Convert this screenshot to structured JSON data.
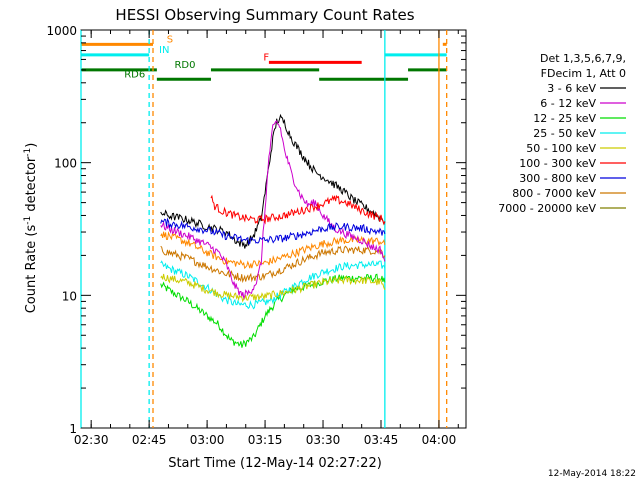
{
  "chart_data": {
    "type": "line",
    "title": "HESSI Observing Summary Count Rates",
    "xlabel": "Start Time (12-May-14 02:27:22)",
    "ylabel": "Count Rate (s",
    "ylabel_sup1": "-1",
    "ylabel_mid": " detector",
    "ylabel_sup2": "-1",
    "ylabel_end": ")",
    "y_scale": "log",
    "ylim": [
      1,
      1000
    ],
    "xlim": [
      "02:27:22",
      "04:07:00"
    ],
    "x_ticks": [
      "02:30",
      "02:45",
      "03:00",
      "03:15",
      "03:30",
      "03:45",
      "04:00"
    ],
    "y_ticks": [
      "1",
      "10",
      "100",
      "1000"
    ],
    "legend": {
      "header1": "Det 1,3,5,6,7,9,",
      "header2": "FDecim 1, Att 0",
      "placement": "right"
    },
    "series": [
      {
        "name": "3 - 6 keV",
        "color": "#000000",
        "points": [
          [
            "02:48",
            42
          ],
          [
            "02:50",
            40
          ],
          [
            "02:55",
            37
          ],
          [
            "03:00",
            33
          ],
          [
            "03:05",
            30
          ],
          [
            "03:08",
            25
          ],
          [
            "03:10",
            24
          ],
          [
            "03:12",
            28
          ],
          [
            "03:14",
            38
          ],
          [
            "03:15",
            60
          ],
          [
            "03:17",
            150
          ],
          [
            "03:18",
            205
          ],
          [
            "03:19",
            215
          ],
          [
            "03:20",
            200
          ],
          [
            "03:22",
            150
          ],
          [
            "03:25",
            110
          ],
          [
            "03:28",
            85
          ],
          [
            "03:31",
            75
          ],
          [
            "03:35",
            62
          ],
          [
            "03:38",
            52
          ],
          [
            "03:42",
            44
          ],
          [
            "03:45",
            38
          ],
          [
            "03:46",
            36
          ]
        ]
      },
      {
        "name": "6 - 12 keV",
        "color": "#cc00cc",
        "points": [
          [
            "02:48",
            34
          ],
          [
            "02:50",
            32
          ],
          [
            "02:55",
            28
          ],
          [
            "03:00",
            24
          ],
          [
            "03:03",
            21
          ],
          [
            "03:05",
            17
          ],
          [
            "03:07",
            12
          ],
          [
            "03:09",
            10
          ],
          [
            "03:11",
            10.5
          ],
          [
            "03:13",
            13
          ],
          [
            "03:14",
            18
          ],
          [
            "03:15",
            45
          ],
          [
            "03:16",
            110
          ],
          [
            "03:17",
            180
          ],
          [
            "03:18",
            205
          ],
          [
            "03:19",
            180
          ],
          [
            "03:20",
            125
          ],
          [
            "03:22",
            80
          ],
          [
            "03:24",
            58
          ],
          [
            "03:26",
            48
          ],
          [
            "03:28",
            50
          ],
          [
            "03:30",
            40
          ],
          [
            "03:33",
            32
          ],
          [
            "03:37",
            28
          ],
          [
            "03:40",
            26
          ],
          [
            "03:43",
            23
          ],
          [
            "03:45",
            22
          ],
          [
            "03:46",
            18
          ]
        ]
      },
      {
        "name": "12 - 25 keV",
        "color": "#00dd00",
        "points": [
          [
            "02:48",
            12
          ],
          [
            "02:50",
            11
          ],
          [
            "02:55",
            9
          ],
          [
            "03:00",
            7
          ],
          [
            "03:03",
            6
          ],
          [
            "03:06",
            4.6
          ],
          [
            "03:09",
            4.2
          ],
          [
            "03:12",
            4.8
          ],
          [
            "03:15",
            7
          ],
          [
            "03:18",
            9
          ],
          [
            "03:22",
            11
          ],
          [
            "03:27",
            12
          ],
          [
            "03:31",
            13
          ],
          [
            "03:35",
            13.5
          ],
          [
            "03:40",
            13.5
          ],
          [
            "03:45",
            13.5
          ],
          [
            "03:46",
            12.5
          ]
        ]
      },
      {
        "name": "25 - 50 keV",
        "color": "#00eeee",
        "points": [
          [
            "02:48",
            17
          ],
          [
            "02:50",
            16
          ],
          [
            "02:55",
            14
          ],
          [
            "03:00",
            11.5
          ],
          [
            "03:04",
            9.5
          ],
          [
            "03:08",
            8.5
          ],
          [
            "03:12",
            8.5
          ],
          [
            "03:16",
            9
          ],
          [
            "03:20",
            10.5
          ],
          [
            "03:25",
            13
          ],
          [
            "03:30",
            15
          ],
          [
            "03:35",
            16.5
          ],
          [
            "03:40",
            17
          ],
          [
            "03:45",
            17
          ],
          [
            "03:46",
            16
          ]
        ]
      },
      {
        "name": "50 - 100 keV",
        "color": "#cccc00",
        "points": [
          [
            "02:48",
            14
          ],
          [
            "02:50",
            13.5
          ],
          [
            "02:55",
            12.5
          ],
          [
            "03:00",
            11
          ],
          [
            "03:05",
            10
          ],
          [
            "03:10",
            9.6
          ],
          [
            "03:15",
            9.8
          ],
          [
            "03:20",
            10.5
          ],
          [
            "03:25",
            11.5
          ],
          [
            "03:30",
            12.5
          ],
          [
            "03:35",
            13
          ],
          [
            "03:40",
            13
          ],
          [
            "03:45",
            12.5
          ],
          [
            "03:46",
            11
          ]
        ]
      },
      {
        "name": "100 - 300 keV",
        "color": "#ff0000",
        "points": [
          [
            "03:01",
            55
          ],
          [
            "03:02",
            47
          ],
          [
            "03:04",
            43
          ],
          [
            "03:07",
            40
          ],
          [
            "03:10",
            38
          ],
          [
            "03:13",
            37
          ],
          [
            "03:16",
            38
          ],
          [
            "03:20",
            40
          ],
          [
            "03:25",
            44
          ],
          [
            "03:30",
            49
          ],
          [
            "03:33",
            53
          ],
          [
            "03:36",
            50
          ],
          [
            "03:39",
            45
          ],
          [
            "03:42",
            41
          ],
          [
            "03:45",
            38
          ],
          [
            "03:46",
            36
          ]
        ]
      },
      {
        "name": "300 - 800 keV",
        "color": "#0000dd",
        "points": [
          [
            "02:48",
            36
          ],
          [
            "02:50",
            35
          ],
          [
            "02:55",
            33
          ],
          [
            "03:00",
            31
          ],
          [
            "03:05",
            28
          ],
          [
            "03:10",
            26
          ],
          [
            "03:15",
            26
          ],
          [
            "03:20",
            27
          ],
          [
            "03:25",
            29
          ],
          [
            "03:30",
            32
          ],
          [
            "03:35",
            33
          ],
          [
            "03:40",
            32
          ],
          [
            "03:45",
            30
          ],
          [
            "03:46",
            29
          ]
        ]
      },
      {
        "name": "800 - 7000 keV",
        "color": "#cc7700",
        "points": [
          [
            "02:48",
            22
          ],
          [
            "02:50",
            21
          ],
          [
            "02:55",
            19
          ],
          [
            "03:00",
            16.5
          ],
          [
            "03:05",
            14.5
          ],
          [
            "03:10",
            13.5
          ],
          [
            "03:15",
            14
          ],
          [
            "03:20",
            16
          ],
          [
            "03:25",
            18.5
          ],
          [
            "03:30",
            21
          ],
          [
            "03:35",
            22
          ],
          [
            "03:40",
            22
          ],
          [
            "03:45",
            21.5
          ],
          [
            "03:46",
            20
          ]
        ]
      },
      {
        "name": "7000 - 20000 keV",
        "color": "#808000",
        "points": []
      }
    ],
    "extra_series": [
      {
        "color": "#ff8800",
        "points": [
          [
            "02:48",
            29
          ],
          [
            "02:50",
            28
          ],
          [
            "02:55",
            25
          ],
          [
            "03:00",
            21
          ],
          [
            "03:05",
            18
          ],
          [
            "03:10",
            17
          ],
          [
            "03:15",
            17.5
          ],
          [
            "03:20",
            19.5
          ],
          [
            "03:25",
            22
          ],
          [
            "03:30",
            24.5
          ],
          [
            "03:35",
            26
          ],
          [
            "03:40",
            26
          ],
          [
            "03:45",
            25.5
          ],
          [
            "03:46",
            24
          ]
        ]
      }
    ],
    "state_bars": [
      {
        "label": "S",
        "color": "#ff8800",
        "label_at": "02:48",
        "segments": [
          [
            "02:27:22",
            "02:46"
          ],
          [
            "04:01",
            "04:02"
          ]
        ],
        "y": 780
      },
      {
        "label": "IN",
        "color": "#00eeee",
        "label_at": "02:46",
        "segments": [
          [
            "02:27:22",
            "02:45"
          ],
          [
            "03:46",
            "04:02"
          ]
        ],
        "y": 650
      },
      {
        "label": "F",
        "color": "#ff0000",
        "label_at": "03:13",
        "segments": [
          [
            "03:16",
            "03:40"
          ]
        ],
        "y": 570
      },
      {
        "label": "RD0",
        "color": "#007700",
        "label_at": "02:50",
        "segments": [
          [
            "02:27:22",
            "02:47"
          ],
          [
            "03:01",
            "03:29"
          ],
          [
            "03:52",
            "04:02"
          ]
        ],
        "y": 500
      },
      {
        "label": "RD6",
        "color": "#007700",
        "label_at": "02:37",
        "segments": [
          [
            "02:47",
            "03:01"
          ],
          [
            "03:29",
            "03:52"
          ]
        ],
        "y": 425
      }
    ],
    "vertical_lines": [
      {
        "time": "02:27:22",
        "color": "#00eeee",
        "style": "solid"
      },
      {
        "time": "02:45",
        "color": "#00eeee",
        "style": "dashed"
      },
      {
        "time": "02:46",
        "color": "#ff8800",
        "style": "dashed"
      },
      {
        "time": "03:46",
        "color": "#00eeee",
        "style": "solid"
      },
      {
        "time": "04:00",
        "color": "#ff8800",
        "style": "solid"
      },
      {
        "time": "04:02",
        "color": "#ff8800",
        "style": "dashed"
      }
    ]
  },
  "footer": {
    "timestamp": "12-May-2014 18:22"
  }
}
